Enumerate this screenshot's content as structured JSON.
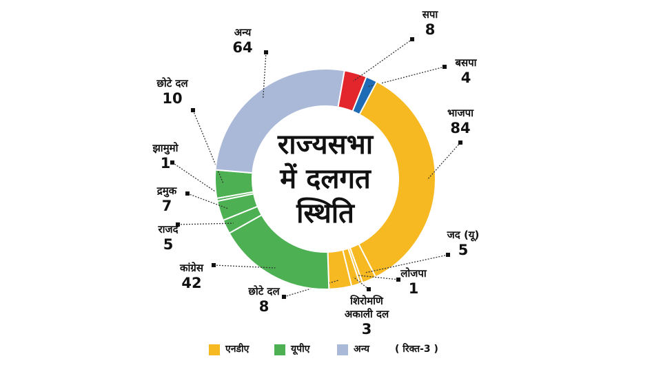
{
  "chart_data": {
    "type": "donut",
    "title_lines": [
      "राज्यसभा",
      "में दलगत",
      "स्थिति"
    ],
    "categories": [
      "सपा",
      "बसपा",
      "भाजपा",
      "जद (यू)",
      "लोजपा",
      "शिरोमणि अकाली दल",
      "छोटे दल",
      "कांग्रेस",
      "राजद",
      "द्रमुक",
      "झामुमो",
      "छोटे दल",
      "अन्य"
    ],
    "values": [
      8,
      4,
      84,
      5,
      1,
      3,
      8,
      42,
      5,
      7,
      1,
      10,
      64
    ],
    "colors": [
      "#e3262b",
      "#1f6bb5",
      "#f7b921",
      "#f7b921",
      "#f7b921",
      "#f7b921",
      "#f7b921",
      "#4db153",
      "#4db153",
      "#4db153",
      "#4db153",
      "#4db153",
      "#aab9d8"
    ],
    "legend": [
      {
        "name": "एनडीए",
        "color": "#f7b921"
      },
      {
        "name": "यूपीए",
        "color": "#4db153"
      },
      {
        "name": "अन्य",
        "color": "#aab9d8"
      }
    ],
    "note": "( रिक्त-3 )"
  }
}
